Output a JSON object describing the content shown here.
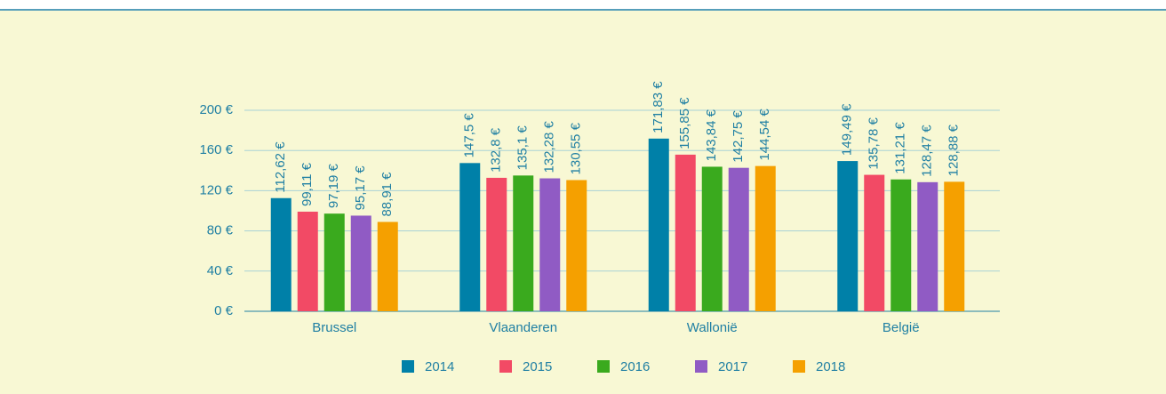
{
  "chart_data": {
    "type": "bar",
    "categories": [
      "Brussel",
      "Vlaanderen",
      "Wallonië",
      "België"
    ],
    "series": [
      {
        "name": "2014",
        "color": "#0080a8",
        "values": [
          112.62,
          147.5,
          171.83,
          149.49
        ],
        "value_labels": [
          "112,62 €",
          "147,5 €",
          "171,83 €",
          "149,49 €"
        ]
      },
      {
        "name": "2015",
        "color": "#f24a65",
        "values": [
          99.11,
          132.8,
          155.85,
          135.78
        ],
        "value_labels": [
          "99,11 €",
          "132,8 €",
          "155,85 €",
          "135,78 €"
        ]
      },
      {
        "name": "2016",
        "color": "#3aaa1e",
        "values": [
          97.19,
          135.1,
          143.84,
          131.21
        ],
        "value_labels": [
          "97,19 €",
          "135,1 €",
          "143,84 €",
          "131,21 €"
        ]
      },
      {
        "name": "2017",
        "color": "#905bc4",
        "values": [
          95.17,
          132.28,
          142.75,
          128.47
        ],
        "value_labels": [
          "95,17 €",
          "132,28 €",
          "142,75 €",
          "128,47 €"
        ]
      },
      {
        "name": "2018",
        "color": "#f5a000",
        "values": [
          88.91,
          130.55,
          144.54,
          128.88
        ],
        "value_labels": [
          "88,91 €",
          "130,55 €",
          "144,54 €",
          "128,88 €"
        ]
      }
    ],
    "ylim": [
      0,
      200
    ],
    "yticks": [
      {
        "value": 0,
        "label": "0 €"
      },
      {
        "value": 40,
        "label": "40 €"
      },
      {
        "value": 80,
        "label": "80 €"
      },
      {
        "value": 120,
        "label": "120 €"
      },
      {
        "value": 160,
        "label": "160 €"
      },
      {
        "value": 200,
        "label": "200 €"
      }
    ],
    "grid": true,
    "legend": "bottom"
  }
}
